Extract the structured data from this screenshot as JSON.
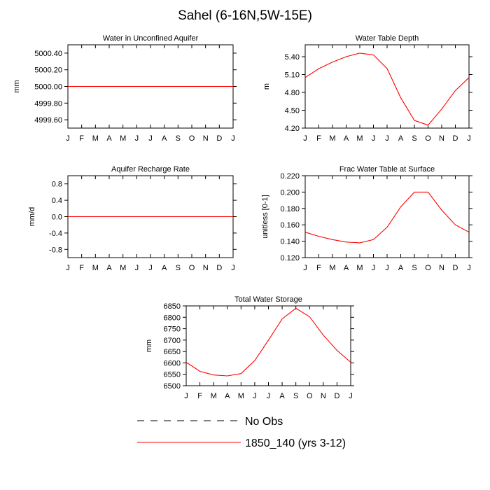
{
  "figure": {
    "title": "Sahel (6-16N,5W-15E)"
  },
  "legend": {
    "items": [
      {
        "label": "No Obs",
        "style": "dashed",
        "color": "#000000"
      },
      {
        "label": "1850_140 (yrs 3-12)",
        "style": "solid",
        "color": "#ff0000"
      }
    ]
  },
  "chart_data": [
    {
      "type": "line",
      "title": "Water in Unconfined Aquifer",
      "xlabel": "",
      "ylabel": "mm",
      "categories": [
        "J",
        "F",
        "M",
        "A",
        "M",
        "J",
        "J",
        "A",
        "S",
        "O",
        "N",
        "D",
        "J"
      ],
      "ylim": [
        4999.5,
        5000.5
      ],
      "yticks": [
        4999.6,
        4999.8,
        5000.0,
        5000.2,
        5000.4
      ],
      "ytick_labels": [
        "4999.60",
        "4999.80",
        "5000.00",
        "5000.20",
        "5000.40"
      ],
      "series": [
        {
          "name": "1850_140 (yrs 3-12)",
          "color": "#ff0000",
          "values": [
            5000.0,
            5000.0,
            5000.0,
            5000.0,
            5000.0,
            5000.0,
            5000.0,
            5000.0,
            5000.0,
            5000.0,
            5000.0,
            5000.0,
            5000.0
          ]
        }
      ]
    },
    {
      "type": "line",
      "title": "Water Table Depth",
      "xlabel": "",
      "ylabel": "m",
      "categories": [
        "J",
        "F",
        "M",
        "A",
        "M",
        "J",
        "J",
        "A",
        "S",
        "O",
        "N",
        "D",
        "J"
      ],
      "ylim": [
        4.2,
        5.6
      ],
      "yticks": [
        4.2,
        4.5,
        4.8,
        5.1,
        5.4
      ],
      "ytick_labels": [
        "4.20",
        "4.50",
        "4.80",
        "5.10",
        "5.40"
      ],
      "series": [
        {
          "name": "1850_140 (yrs 3-12)",
          "color": "#ff0000",
          "values": [
            5.05,
            5.2,
            5.31,
            5.4,
            5.46,
            5.43,
            5.2,
            4.71,
            4.33,
            4.25,
            4.52,
            4.83,
            5.05
          ]
        }
      ]
    },
    {
      "type": "line",
      "title": "Aquifer Recharge Rate",
      "xlabel": "",
      "ylabel": "mm/d",
      "categories": [
        "J",
        "F",
        "M",
        "A",
        "M",
        "J",
        "J",
        "A",
        "S",
        "O",
        "N",
        "D",
        "J"
      ],
      "ylim": [
        -1.0,
        1.0
      ],
      "yticks": [
        -0.8,
        -0.4,
        0.0,
        0.4,
        0.8
      ],
      "ytick_labels": [
        "-0.8",
        "-0.4",
        "0.0",
        "0.4",
        "0.8"
      ],
      "series": [
        {
          "name": "1850_140 (yrs 3-12)",
          "color": "#ff0000",
          "values": [
            0,
            0,
            0,
            0,
            0,
            0,
            0,
            0,
            0,
            0,
            0,
            0,
            0
          ]
        }
      ]
    },
    {
      "type": "line",
      "title": "Frac Water Table at Surface",
      "xlabel": "",
      "ylabel": "unitless [0-1]",
      "categories": [
        "J",
        "F",
        "M",
        "A",
        "M",
        "J",
        "J",
        "A",
        "S",
        "O",
        "N",
        "D",
        "J"
      ],
      "ylim": [
        0.12,
        0.22
      ],
      "yticks": [
        0.12,
        0.14,
        0.16,
        0.18,
        0.2,
        0.22
      ],
      "ytick_labels": [
        "0.120",
        "0.140",
        "0.160",
        "0.180",
        "0.200",
        "0.220"
      ],
      "series": [
        {
          "name": "1850_140 (yrs 3-12)",
          "color": "#ff0000",
          "values": [
            0.151,
            0.146,
            0.142,
            0.139,
            0.138,
            0.142,
            0.157,
            0.182,
            0.2,
            0.2,
            0.178,
            0.16,
            0.151
          ]
        }
      ]
    },
    {
      "type": "line",
      "title": "Total Water Storage",
      "xlabel": "",
      "ylabel": "mm",
      "categories": [
        "J",
        "F",
        "M",
        "A",
        "M",
        "J",
        "J",
        "A",
        "S",
        "O",
        "N",
        "D",
        "J"
      ],
      "ylim": [
        6500,
        6850
      ],
      "yticks": [
        6500,
        6550,
        6600,
        6650,
        6700,
        6750,
        6800,
        6850
      ],
      "ytick_labels": [
        "6500",
        "6550",
        "6600",
        "6650",
        "6700",
        "6750",
        "6800",
        "6850"
      ],
      "series": [
        {
          "name": "1850_140 (yrs 3-12)",
          "color": "#ff0000",
          "values": [
            6603,
            6563,
            6547,
            6543,
            6553,
            6610,
            6700,
            6793,
            6840,
            6802,
            6722,
            6655,
            6603
          ]
        }
      ]
    }
  ]
}
